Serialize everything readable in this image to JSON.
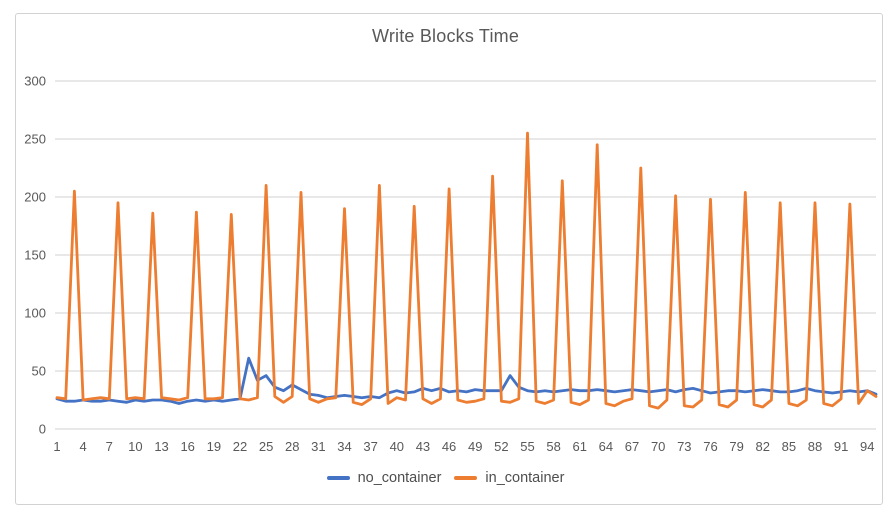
{
  "chart_data": {
    "type": "line",
    "title": "Write Blocks Time",
    "xlabel": "",
    "ylabel": "",
    "ylim": [
      0,
      300
    ],
    "y_ticks": [
      0,
      50,
      100,
      150,
      200,
      250,
      300
    ],
    "x_ticks": [
      1,
      4,
      7,
      10,
      13,
      16,
      19,
      22,
      25,
      28,
      31,
      34,
      37,
      40,
      43,
      46,
      49,
      52,
      55,
      58,
      61,
      64,
      67,
      70,
      73,
      76,
      79,
      82,
      85,
      88,
      91,
      94
    ],
    "grid": "horizontal",
    "legend_position": "bottom",
    "title_color": "#595959",
    "axis_label_color": "#595959",
    "gridline_color": "#d9d9d9",
    "x": [
      1,
      2,
      3,
      4,
      5,
      6,
      7,
      8,
      9,
      10,
      11,
      12,
      13,
      14,
      15,
      16,
      17,
      18,
      19,
      20,
      21,
      22,
      23,
      24,
      25,
      26,
      27,
      28,
      29,
      30,
      31,
      32,
      33,
      34,
      35,
      36,
      37,
      38,
      39,
      40,
      41,
      42,
      43,
      44,
      45,
      46,
      47,
      48,
      49,
      50,
      51,
      52,
      53,
      54,
      55,
      56,
      57,
      58,
      59,
      60,
      61,
      62,
      63,
      64,
      65,
      66,
      67,
      68,
      69,
      70,
      71,
      72,
      73,
      74,
      75,
      76,
      77,
      78,
      79,
      80,
      81,
      82,
      83,
      84,
      85,
      86,
      87,
      88,
      89,
      90,
      91,
      92,
      93,
      94,
      95
    ],
    "series": [
      {
        "name": "no_container",
        "color": "#4472C4",
        "values": [
          26,
          24,
          24,
          25,
          24,
          24,
          25,
          24,
          23,
          25,
          24,
          25,
          25,
          24,
          22,
          24,
          25,
          24,
          25,
          24,
          25,
          26,
          61,
          42,
          46,
          36,
          33,
          38,
          34,
          30,
          29,
          27,
          28,
          29,
          28,
          27,
          28,
          27,
          31,
          33,
          31,
          32,
          35,
          33,
          35,
          32,
          33,
          32,
          34,
          33,
          33,
          33,
          46,
          36,
          33,
          32,
          33,
          32,
          33,
          34,
          33,
          33,
          34,
          33,
          32,
          33,
          34,
          33,
          32,
          33,
          34,
          32,
          34,
          35,
          33,
          31,
          32,
          33,
          33,
          32,
          33,
          34,
          33,
          32,
          32,
          33,
          35,
          33,
          32,
          31,
          32,
          33,
          32,
          33,
          30
        ]
      },
      {
        "name": "in_container",
        "color": "#ED7D31",
        "values": [
          27,
          26,
          205,
          25,
          26,
          27,
          26,
          195,
          26,
          27,
          26,
          186,
          27,
          26,
          25,
          27,
          187,
          26,
          26,
          27,
          185,
          26,
          25,
          27,
          210,
          28,
          23,
          28,
          204,
          26,
          23,
          26,
          27,
          190,
          23,
          21,
          26,
          210,
          22,
          27,
          25,
          192,
          26,
          22,
          26,
          207,
          25,
          23,
          24,
          26,
          218,
          24,
          23,
          26,
          255,
          24,
          22,
          25,
          214,
          23,
          21,
          25,
          245,
          22,
          20,
          24,
          26,
          225,
          20,
          18,
          25,
          201,
          20,
          19,
          25,
          198,
          21,
          19,
          25,
          204,
          21,
          19,
          25,
          195,
          22,
          20,
          25,
          195,
          22,
          20,
          26,
          194,
          22,
          33,
          28
        ]
      }
    ]
  }
}
